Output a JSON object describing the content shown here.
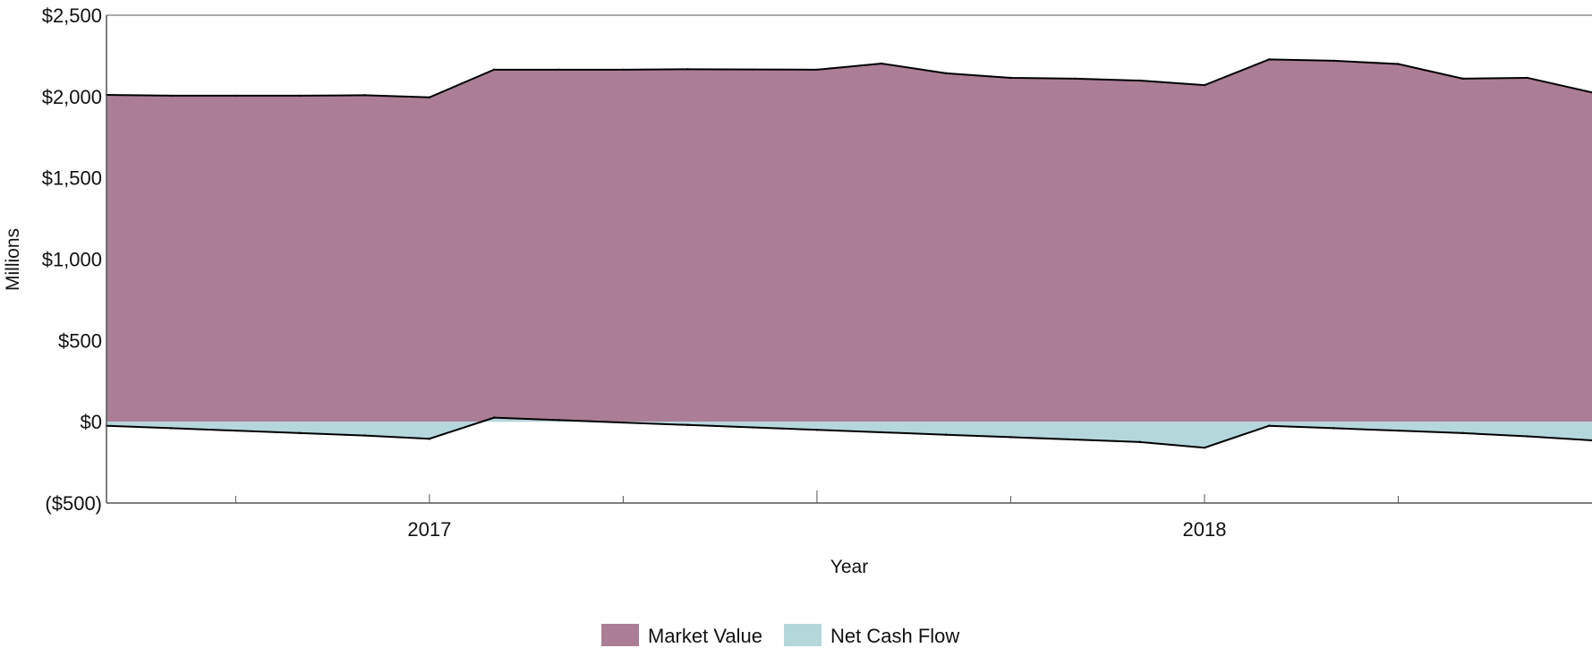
{
  "chart_data": {
    "type": "area",
    "title": "",
    "xlabel": "Year",
    "ylabel": "Millions",
    "ylim": [
      -500,
      2500
    ],
    "yticks": [
      -500,
      0,
      500,
      1000,
      1500,
      2000,
      2500
    ],
    "ytick_labels": [
      "($500)",
      "$0",
      "$500",
      "$1,000",
      "$1,500",
      "$2,000",
      "$2,500"
    ],
    "xlim": [
      2016.5833,
      2018.5
    ],
    "xticks": [
      2017,
      2018
    ],
    "xtick_labels": [
      "2017",
      "2018"
    ],
    "x_minor_ticks": [
      2016.75,
      2017.25,
      2017.75,
      2018.25
    ],
    "x_major_unlabeled_ticks": [
      2017.5
    ],
    "grid": false,
    "legend": "bottom-center",
    "series": [
      {
        "name": "Market Value",
        "color": "#ab7e95",
        "points": [
          [
            2016.5833,
            2010
          ],
          [
            2016.6667,
            2005
          ],
          [
            2016.75,
            2005
          ],
          [
            2016.8333,
            2005
          ],
          [
            2016.9167,
            2008
          ],
          [
            2017.0,
            1995
          ],
          [
            2017.0833,
            2165
          ],
          [
            2017.1667,
            2165
          ],
          [
            2017.25,
            2165
          ],
          [
            2017.3333,
            2168
          ],
          [
            2017.4167,
            2166
          ],
          [
            2017.5,
            2165
          ],
          [
            2017.5833,
            2203
          ],
          [
            2017.6667,
            2143
          ],
          [
            2017.75,
            2115
          ],
          [
            2017.8333,
            2110
          ],
          [
            2017.9167,
            2098
          ],
          [
            2018.0,
            2070
          ],
          [
            2018.0833,
            2228
          ],
          [
            2018.1667,
            2220
          ],
          [
            2018.25,
            2200
          ],
          [
            2018.3333,
            2110
          ],
          [
            2018.4167,
            2115
          ],
          [
            2018.5,
            2025
          ]
        ]
      },
      {
        "name": "Net Cash Flow",
        "color": "#b4d7dc",
        "points": [
          [
            2016.5833,
            -25
          ],
          [
            2016.6667,
            -40
          ],
          [
            2016.75,
            -55
          ],
          [
            2016.8333,
            -70
          ],
          [
            2016.9167,
            -85
          ],
          [
            2017.0,
            -105
          ],
          [
            2017.0833,
            25
          ],
          [
            2017.1667,
            10
          ],
          [
            2017.25,
            -5
          ],
          [
            2017.3333,
            -20
          ],
          [
            2017.4167,
            -35
          ],
          [
            2017.5,
            -50
          ],
          [
            2017.5833,
            -65
          ],
          [
            2017.6667,
            -80
          ],
          [
            2017.75,
            -95
          ],
          [
            2017.8333,
            -110
          ],
          [
            2017.9167,
            -125
          ],
          [
            2018.0,
            -160
          ],
          [
            2018.0833,
            -25
          ],
          [
            2018.1667,
            -40
          ],
          [
            2018.25,
            -55
          ],
          [
            2018.3333,
            -70
          ],
          [
            2018.4167,
            -90
          ],
          [
            2018.5,
            -115
          ]
        ]
      }
    ]
  }
}
